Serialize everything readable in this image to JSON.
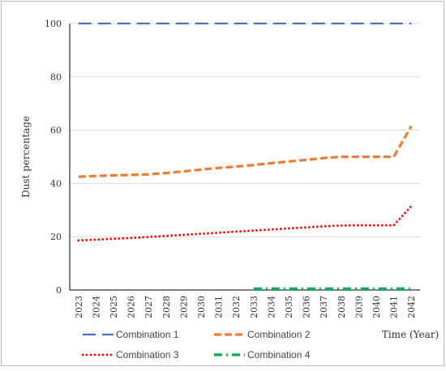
{
  "chart_data": {
    "type": "line",
    "title": "",
    "xlabel": "Time (Year)",
    "ylabel": "Dust percentage",
    "ylim": [
      0,
      100
    ],
    "yticks": [
      0,
      20,
      40,
      60,
      80,
      100
    ],
    "grid": "horizontal",
    "legend_position": "bottom",
    "categories": [
      "2023",
      "2024",
      "2025",
      "2026",
      "2027",
      "2028",
      "2029",
      "2030",
      "2031",
      "2032",
      "2033",
      "2034",
      "2035",
      "2036",
      "2037",
      "2038",
      "2039",
      "2040",
      "2041",
      "2042"
    ],
    "series": [
      {
        "name": "Combination 1",
        "color": "#4472c4",
        "dash": "long-dash",
        "values": [
          100,
          100,
          100,
          100,
          100,
          100,
          100,
          100,
          100,
          100,
          100,
          100,
          100,
          100,
          100,
          100,
          100,
          100,
          100,
          100
        ]
      },
      {
        "name": "Combination 2",
        "color": "#ed7d31",
        "dash": "dash",
        "values": [
          42.5,
          42.8,
          43.0,
          43.2,
          43.4,
          43.9,
          44.5,
          45.2,
          45.8,
          46.3,
          46.9,
          47.6,
          48.2,
          48.8,
          49.5,
          50.0,
          50.0,
          50.0,
          50.0,
          61.5
        ]
      },
      {
        "name": "Combination 3",
        "color": "#ff0000",
        "dash": "dot",
        "values": [
          18.6,
          18.9,
          19.2,
          19.5,
          19.9,
          20.3,
          20.7,
          21.1,
          21.5,
          21.9,
          22.3,
          22.7,
          23.1,
          23.5,
          23.9,
          24.2,
          24.3,
          24.3,
          24.3,
          31.5
        ]
      },
      {
        "name": "Combination 4",
        "color": "#00b050",
        "dash": "dash-dot",
        "values": [
          null,
          null,
          null,
          null,
          null,
          null,
          null,
          null,
          null,
          null,
          0.5,
          0.5,
          0.5,
          0.5,
          0.5,
          0.5,
          0.5,
          0.5,
          0.5,
          0.5
        ]
      }
    ]
  }
}
